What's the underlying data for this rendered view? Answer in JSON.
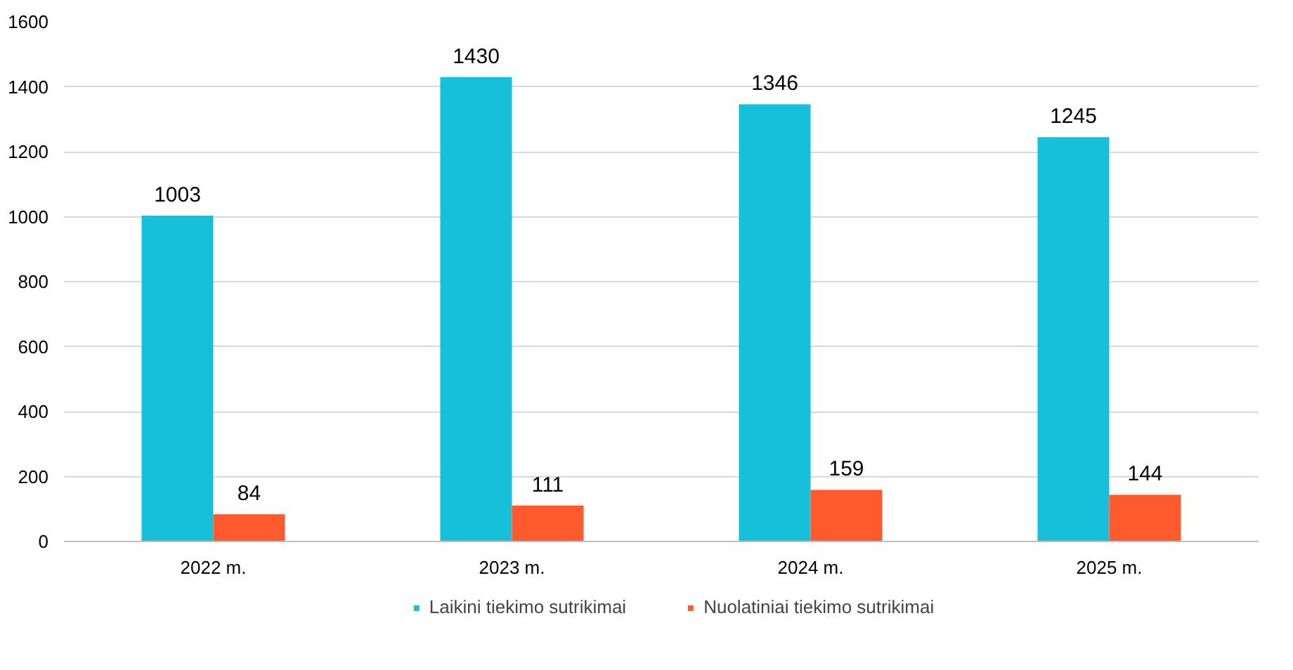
{
  "chart_data": {
    "type": "bar",
    "categories": [
      "2022 m.",
      "2023 m.",
      "2024 m.",
      "2025 m."
    ],
    "series": [
      {
        "name": "Laikini tiekimo sutrikimai",
        "color": "#17c0da",
        "values": [
          1003,
          1430,
          1346,
          1245
        ]
      },
      {
        "name": "Nuolatiniai tiekimo sutrikimai",
        "color": "#ff5a2d",
        "values": [
          84,
          111,
          159,
          144
        ]
      }
    ],
    "ylim": [
      0,
      1600
    ],
    "yticks": [
      0,
      200,
      400,
      600,
      800,
      1000,
      1200,
      1400,
      1600
    ],
    "grid": "y",
    "legend": "bottom",
    "data_labels": true
  }
}
